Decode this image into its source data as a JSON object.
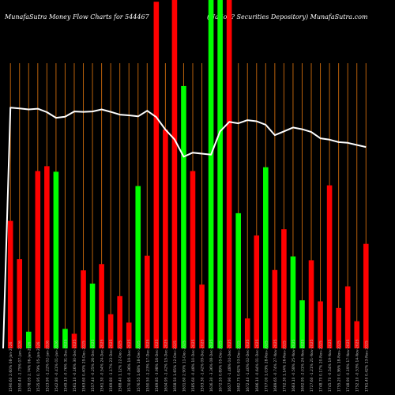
{
  "header": {
    "left": "MunafaSutra  Money Flow  Charts for 544467",
    "right": "(Nation? Securities Depository) MunafaSutra.com"
  },
  "chart_data": {
    "type": "bar",
    "title": "MunafaSutra  Money Flow  Charts for 544467",
    "subtitle": "(Nation? Securities Depository) MunafaSutra.com",
    "y_range": [
      0,
      100
    ],
    "colors": {
      "up": "#00ff00",
      "down": "#ff0000",
      "grid": "#b8600b",
      "line": "#ffffff",
      "background": "#000000"
    },
    "bars": [
      {
        "label": "1590.60 2.60% 08-Jan-2026",
        "color": "red",
        "value": 36.6
      },
      {
        "label": "1550.40 -1.75% 07-Jan-2026",
        "color": "red",
        "value": 25.6
      },
      {
        "label": "1578.05 2.74% 06-Jan-2026",
        "color": "green",
        "value": 4.8
      },
      {
        "label": "1535.95 0.79% 05-Jan-2026",
        "color": "red",
        "value": 50.9
      },
      {
        "label": "1523.90 -1.22% 02-Jan-2026",
        "color": "red",
        "value": 52.3
      },
      {
        "label": "1542.80 -0.41% 01-Jan-2026",
        "color": "green",
        "value": 50.7
      },
      {
        "label": "1549.10 -0.76% 31-Dec-2025",
        "color": "green",
        "value": 5.6
      },
      {
        "label": "1561.10 -0.16% 30-Dec-2025",
        "color": "red",
        "value": 4.2
      },
      {
        "label": "1563.60 0.40% 29-Dec-2025",
        "color": "red",
        "value": 22.4
      },
      {
        "label": "1557.40 -0.25% 26-Dec-2025",
        "color": "green",
        "value": 18.6
      },
      {
        "label": "1561.30 -0.54% 24-Dec-2025",
        "color": "red",
        "value": 24.2
      },
      {
        "label": "1569.80 -1.17% 23-Dec-2025",
        "color": "red",
        "value": 9.8
      },
      {
        "label": "1588.40 1.12% 22-Dec-2025",
        "color": "red",
        "value": 15.0
      },
      {
        "label": "1570.85 -0.36% 19-Dec-2025",
        "color": "red",
        "value": 7.4
      },
      {
        "label": "1576.55 1.68% 18-Dec-2025",
        "color": "green",
        "value": 46.6
      },
      {
        "label": "1550.50 -1.23% 17-Dec-2025",
        "color": "red",
        "value": 26.6
      },
      {
        "label": "1569.85 -3.98% 16-Dec-2025",
        "color": "red",
        "value": 99.5
      },
      {
        "label": "1634.95 -1.42% 15-Dec-2025",
        "color": "red",
        "value": 62.8
      },
      {
        "label": "1658.50 1.65% 12-Dec-2025",
        "color": "red",
        "value": 100.0
      },
      {
        "label": "1631.60 2.90% 11-Dec-2025",
        "color": "green",
        "value": 75.3
      },
      {
        "label": "1585.60 -0.48% 10-Dec-2025",
        "color": "red",
        "value": 50.9
      },
      {
        "label": "1593.30 -1.42% 09-Dec-2025",
        "color": "red",
        "value": 18.3
      },
      {
        "label": "1616.30 -3.36% 08-Dec-2025",
        "color": "green",
        "value": 100.0
      },
      {
        "label": "1672.55 0.89% 05-Dec-2025",
        "color": "green",
        "value": 100.0
      },
      {
        "label": "1657.90 -1.48% 04-Dec-2025",
        "color": "red",
        "value": 100.0
      },
      {
        "label": "1682.75 0.62% 03-Dec-2025",
        "color": "green",
        "value": 38.8
      },
      {
        "label": "1672.40 -1.40% 02-Dec-2025",
        "color": "red",
        "value": 8.6
      },
      {
        "label": "1696.10 -0.64% 01-Dec-2025",
        "color": "red",
        "value": 32.4
      },
      {
        "label": "1707.00 1.03% 28-Nov-2025",
        "color": "green",
        "value": 52.0
      },
      {
        "label": "1689.65 -0.74% 27-Nov-2025",
        "color": "red",
        "value": 22.5
      },
      {
        "label": "1702.30 1.14% 26-Nov-2025",
        "color": "red",
        "value": 34.2
      },
      {
        "label": "1683.10 -0.58% 25-Nov-2025",
        "color": "green",
        "value": 26.4
      },
      {
        "label": "1692.95 -2.01% 24-Nov-2025",
        "color": "green",
        "value": 13.8
      },
      {
        "label": "1727.60 -1.21% 21-Nov-2025",
        "color": "red",
        "value": 25.3
      },
      {
        "label": "1748.70 0.17% 20-Nov-2025",
        "color": "red",
        "value": 13.5
      },
      {
        "label": "1745.70 -0.54% 19-Nov-2025",
        "color": "red",
        "value": 46.8
      },
      {
        "label": "1755.20 0.36% 18-Nov-2025",
        "color": "red",
        "value": 11.6
      },
      {
        "label": "1748.90 -0.19% 17-Nov-2025",
        "color": "red",
        "value": 17.8
      },
      {
        "label": "1752.10 -0.53% 14-Nov-2025",
        "color": "red",
        "value": 7.8
      },
      {
        "label": "1761.40 0.42% 13-Nov-2025",
        "color": "red",
        "value": 30.0
      }
    ],
    "line": [
      69.1,
      68.9,
      68.6,
      68.8,
      67.8,
      66.2,
      66.5,
      68.0,
      67.9,
      68.0,
      68.6,
      67.9,
      67.1,
      66.9,
      66.6,
      68.2,
      66.4,
      62.8,
      60.0,
      55.0,
      56.2,
      55.9,
      55.6,
      62.3,
      65.0,
      64.6,
      65.5,
      65.2,
      64.2,
      61.2,
      62.3,
      63.4,
      62.9,
      62.1,
      60.3,
      59.9,
      59.2,
      59.0,
      58.4,
      57.8
    ]
  }
}
